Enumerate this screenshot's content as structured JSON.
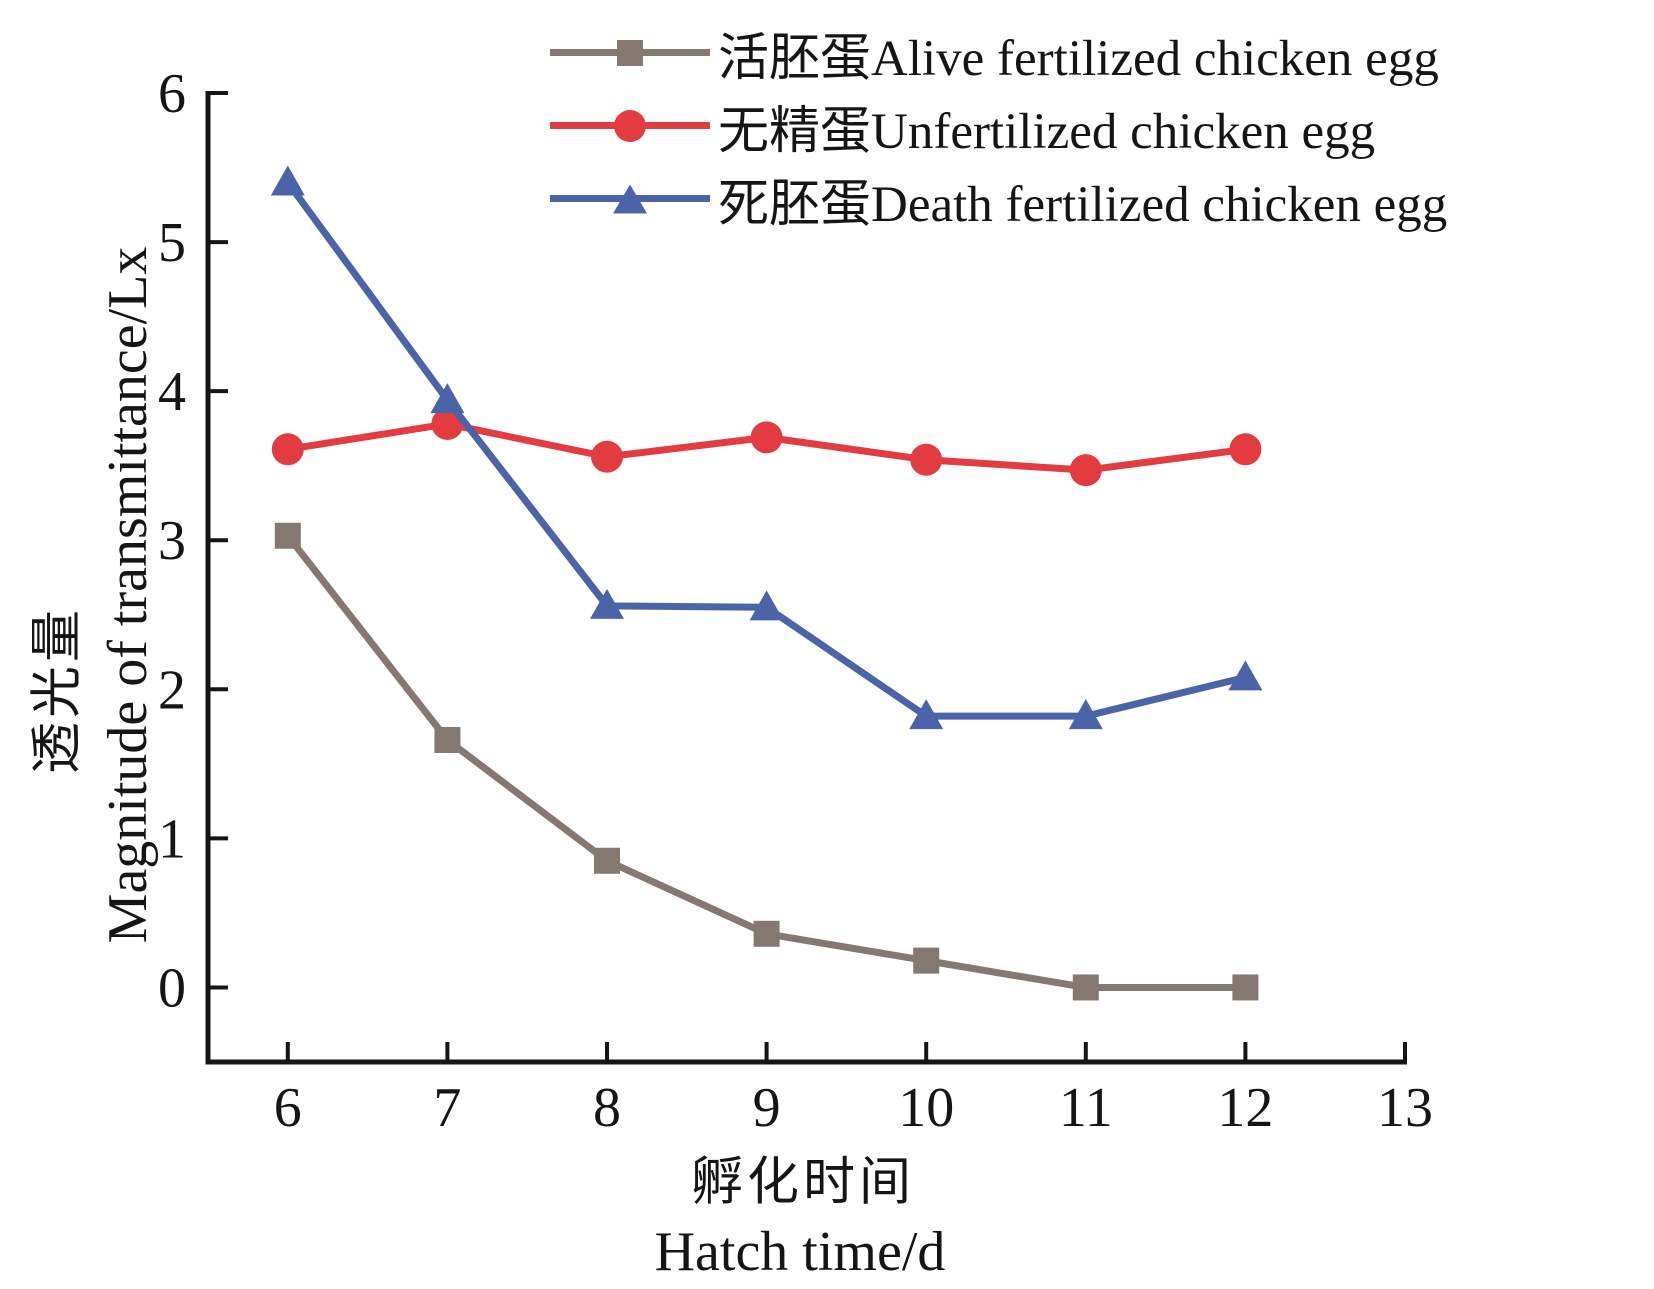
{
  "chart_data": {
    "type": "line",
    "title": "",
    "x": [
      6,
      7,
      8,
      9,
      10,
      11,
      12
    ],
    "series": [
      {
        "id": "alive-fertilized-egg",
        "name": "活胚蛋Alive fertilized chicken egg",
        "marker": "square",
        "color": "#857873",
        "values": [
          3.03,
          1.66,
          0.85,
          0.36,
          0.18,
          0.0,
          0.0
        ]
      },
      {
        "id": "unfertilized-egg",
        "name": "无精蛋Unfertilized chicken egg",
        "marker": "circle",
        "color": "#e23c40",
        "values": [
          3.61,
          3.78,
          3.56,
          3.69,
          3.54,
          3.47,
          3.61
        ]
      },
      {
        "id": "death-fertilized-egg",
        "name": "死胚蛋Death fertilized chicken egg",
        "marker": "triangle",
        "color": "#4b64a8",
        "values": [
          5.4,
          3.94,
          2.56,
          2.55,
          1.82,
          1.82,
          2.08
        ]
      }
    ],
    "xlabel_zh": "孵化时间",
    "xlabel_en": "Hatch time/d",
    "ylabel_zh": "透光量",
    "ylabel_en": "Magnitude of transmittance/Lx",
    "x_ticks": [
      6,
      7,
      8,
      9,
      10,
      11,
      12,
      13
    ],
    "y_ticks": [
      0,
      1,
      2,
      3,
      4,
      5,
      6
    ],
    "xlim": [
      5.5,
      13
    ],
    "ylim": [
      -0.5,
      6
    ],
    "grid": false,
    "legend_position": "top",
    "axis_color": "#151515"
  }
}
